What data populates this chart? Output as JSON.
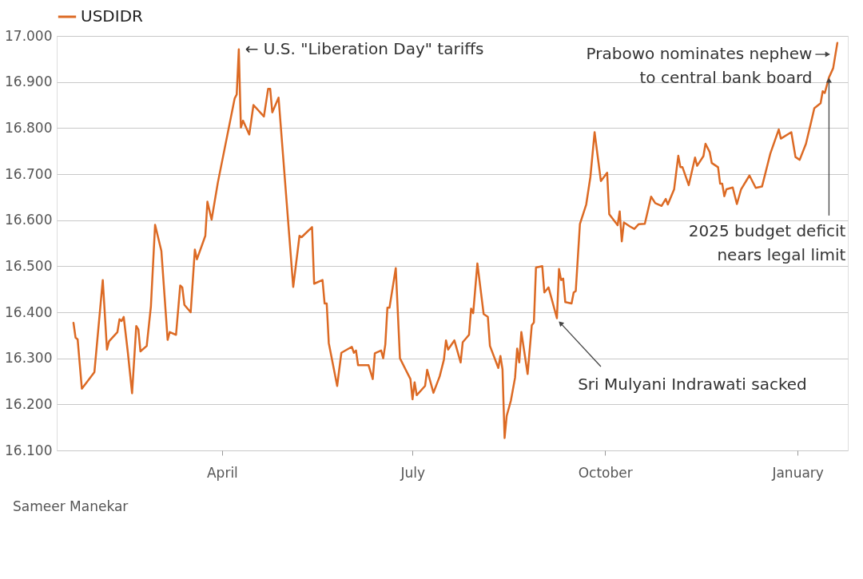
{
  "chart_data": {
    "type": "line",
    "series": [
      {
        "name": "USDIDR",
        "color": "#dc6a24",
        "x": [
          "2025-01-20",
          "2025-01-21",
          "2025-01-22",
          "2025-01-24",
          "2025-01-30",
          "2025-02-03",
          "2025-02-05",
          "2025-02-06",
          "2025-02-10",
          "2025-02-11",
          "2025-02-12",
          "2025-02-13",
          "2025-02-15",
          "2025-02-17",
          "2025-02-19",
          "2025-02-20",
          "2025-02-21",
          "2025-02-24",
          "2025-02-26",
          "2025-02-28",
          "2025-03-03",
          "2025-03-06",
          "2025-03-07",
          "2025-03-10",
          "2025-03-12",
          "2025-03-13",
          "2025-03-14",
          "2025-03-17",
          "2025-03-19",
          "2025-03-20",
          "2025-03-24",
          "2025-03-25",
          "2025-03-27",
          "2025-03-30",
          "2025-04-07",
          "2025-04-08",
          "2025-04-09",
          "2025-04-10",
          "2025-04-11",
          "2025-04-14",
          "2025-04-16",
          "2025-04-21",
          "2025-04-23",
          "2025-04-24",
          "2025-04-25",
          "2025-04-28",
          "2025-05-05",
          "2025-05-08",
          "2025-05-09",
          "2025-05-14",
          "2025-05-15",
          "2025-05-19",
          "2025-05-20",
          "2025-05-21",
          "2025-05-22",
          "2025-05-26",
          "2025-05-28",
          "2025-06-02",
          "2025-06-03",
          "2025-06-04",
          "2025-06-05",
          "2025-06-09",
          "2025-06-10",
          "2025-06-12",
          "2025-06-13",
          "2025-06-16",
          "2025-06-17",
          "2025-06-18",
          "2025-06-19",
          "2025-06-20",
          "2025-06-23",
          "2025-06-25",
          "2025-06-30",
          "2025-07-01",
          "2025-07-02",
          "2025-07-03",
          "2025-07-07",
          "2025-07-08",
          "2025-07-11",
          "2025-07-14",
          "2025-07-16",
          "2025-07-17",
          "2025-07-18",
          "2025-07-21",
          "2025-07-24",
          "2025-07-25",
          "2025-07-28",
          "2025-07-29",
          "2025-07-30",
          "2025-08-01",
          "2025-08-04",
          "2025-08-06",
          "2025-08-07",
          "2025-08-11",
          "2025-08-12",
          "2025-08-13",
          "2025-08-14",
          "2025-08-15",
          "2025-08-17",
          "2025-08-19",
          "2025-08-20",
          "2025-08-21",
          "2025-08-22",
          "2025-08-25",
          "2025-08-27",
          "2025-08-28",
          "2025-08-29",
          "2025-09-01",
          "2025-09-02",
          "2025-09-04",
          "2025-09-08",
          "2025-09-09",
          "2025-09-10",
          "2025-09-11",
          "2025-09-12",
          "2025-09-15",
          "2025-09-16",
          "2025-09-17",
          "2025-09-19",
          "2025-09-22",
          "2025-09-24",
          "2025-09-26",
          "2025-09-29",
          "2025-10-02",
          "2025-10-03",
          "2025-10-06",
          "2025-10-07",
          "2025-10-08",
          "2025-10-09",
          "2025-10-10",
          "2025-10-13",
          "2025-10-15",
          "2025-10-17",
          "2025-10-20",
          "2025-10-23",
          "2025-10-25",
          "2025-10-28",
          "2025-10-30",
          "2025-10-31",
          "2025-11-03",
          "2025-11-05",
          "2025-11-06",
          "2025-11-07",
          "2025-11-10",
          "2025-11-13",
          "2025-11-14",
          "2025-11-17",
          "2025-11-18",
          "2025-11-20",
          "2025-11-21",
          "2025-11-24",
          "2025-11-25",
          "2025-11-26",
          "2025-11-27",
          "2025-11-28",
          "2025-12-01",
          "2025-12-03",
          "2025-12-05",
          "2025-12-09",
          "2025-12-12",
          "2025-12-15",
          "2025-12-19",
          "2025-12-23",
          "2025-12-24",
          "2025-12-29",
          "2025-12-31",
          "2026-01-02",
          "2026-01-05",
          "2026-01-07",
          "2026-01-09",
          "2026-01-12",
          "2026-01-13",
          "2026-01-14",
          "2026-01-16",
          "2026-01-18",
          "2026-01-20"
        ],
        "values": [
          16377,
          16345,
          16341,
          16234,
          16270,
          16470,
          16319,
          16337,
          16357,
          16385,
          16381,
          16390,
          16312,
          16224,
          16370,
          16363,
          16315,
          16327,
          16413,
          16590,
          16533,
          16340,
          16357,
          16351,
          16458,
          16454,
          16416,
          16400,
          16536,
          16515,
          16566,
          16640,
          16601,
          16682,
          16864,
          16873,
          16971,
          16801,
          16816,
          16786,
          16850,
          16825,
          16885,
          16885,
          16834,
          16866,
          16455,
          16566,
          16563,
          16585,
          16462,
          16470,
          16419,
          16419,
          16333,
          16240,
          16312,
          16325,
          16312,
          16317,
          16285,
          16285,
          16285,
          16255,
          16311,
          16317,
          16300,
          16330,
          16410,
          16410,
          16496,
          16300,
          16255,
          16211,
          16248,
          16220,
          16240,
          16275,
          16225,
          16261,
          16297,
          16339,
          16319,
          16339,
          16291,
          16335,
          16351,
          16408,
          16398,
          16506,
          16396,
          16390,
          16327,
          16279,
          16305,
          16276,
          16127,
          16175,
          16208,
          16258,
          16321,
          16291,
          16357,
          16266,
          16372,
          16378,
          16497,
          16500,
          16443,
          16454,
          16387,
          16494,
          16470,
          16473,
          16422,
          16419,
          16443,
          16446,
          16592,
          16634,
          16694,
          16791,
          16685,
          16703,
          16613,
          16595,
          16589,
          16619,
          16554,
          16595,
          16586,
          16581,
          16591,
          16592,
          16651,
          16637,
          16631,
          16646,
          16634,
          16667,
          16740,
          16715,
          16715,
          16676,
          16736,
          16718,
          16739,
          16766,
          16748,
          16724,
          16715,
          16679,
          16679,
          16652,
          16667,
          16671,
          16635,
          16667,
          16697,
          16670,
          16673,
          16745,
          16797,
          16777,
          16791,
          16737,
          16731,
          16766,
          16804,
          16843,
          16854,
          16880,
          16876,
          16910,
          16930,
          16985
        ]
      }
    ],
    "xlim": [
      "2025-01-12",
      "2026-01-25"
    ],
    "xticks": [
      {
        "value": "2025-04-01",
        "label": "April"
      },
      {
        "value": "2025-07-01",
        "label": "July"
      },
      {
        "value": "2025-10-01",
        "label": "October"
      },
      {
        "value": "2026-01-01",
        "label": "January"
      }
    ],
    "ylim": [
      16100,
      17000
    ],
    "yticks": [
      {
        "value": 16100,
        "label": "16.100"
      },
      {
        "value": 16200,
        "label": "16.200"
      },
      {
        "value": 16300,
        "label": "16.300"
      },
      {
        "value": 16400,
        "label": "16.400"
      },
      {
        "value": 16500,
        "label": "16.500"
      },
      {
        "value": 16600,
        "label": "16.600"
      },
      {
        "value": 16700,
        "label": "16.700"
      },
      {
        "value": 16800,
        "label": "16.800"
      },
      {
        "value": 16900,
        "label": "16.900"
      },
      {
        "value": 17000,
        "label": "17.000"
      }
    ],
    "grid": "y",
    "legend": "top left",
    "line_style": "solid",
    "annotations": [
      {
        "text": "← U.S. \"Liberation Day\" tariffs",
        "x": "2025-04-09",
        "y": 16971
      },
      {
        "text": "Prabowo nominates nephew\nto central bank board",
        "x": "2026-01-19",
        "y": 16960
      },
      {
        "text": "2025 budget deficit\nnears legal limit",
        "x": "2026-01-16",
        "y": 16910
      },
      {
        "text": "Sri Mulyani Indrawati sacked",
        "x": "2025-09-08",
        "y": 16387
      },
      "Sameer Manekar"
    ]
  }
}
